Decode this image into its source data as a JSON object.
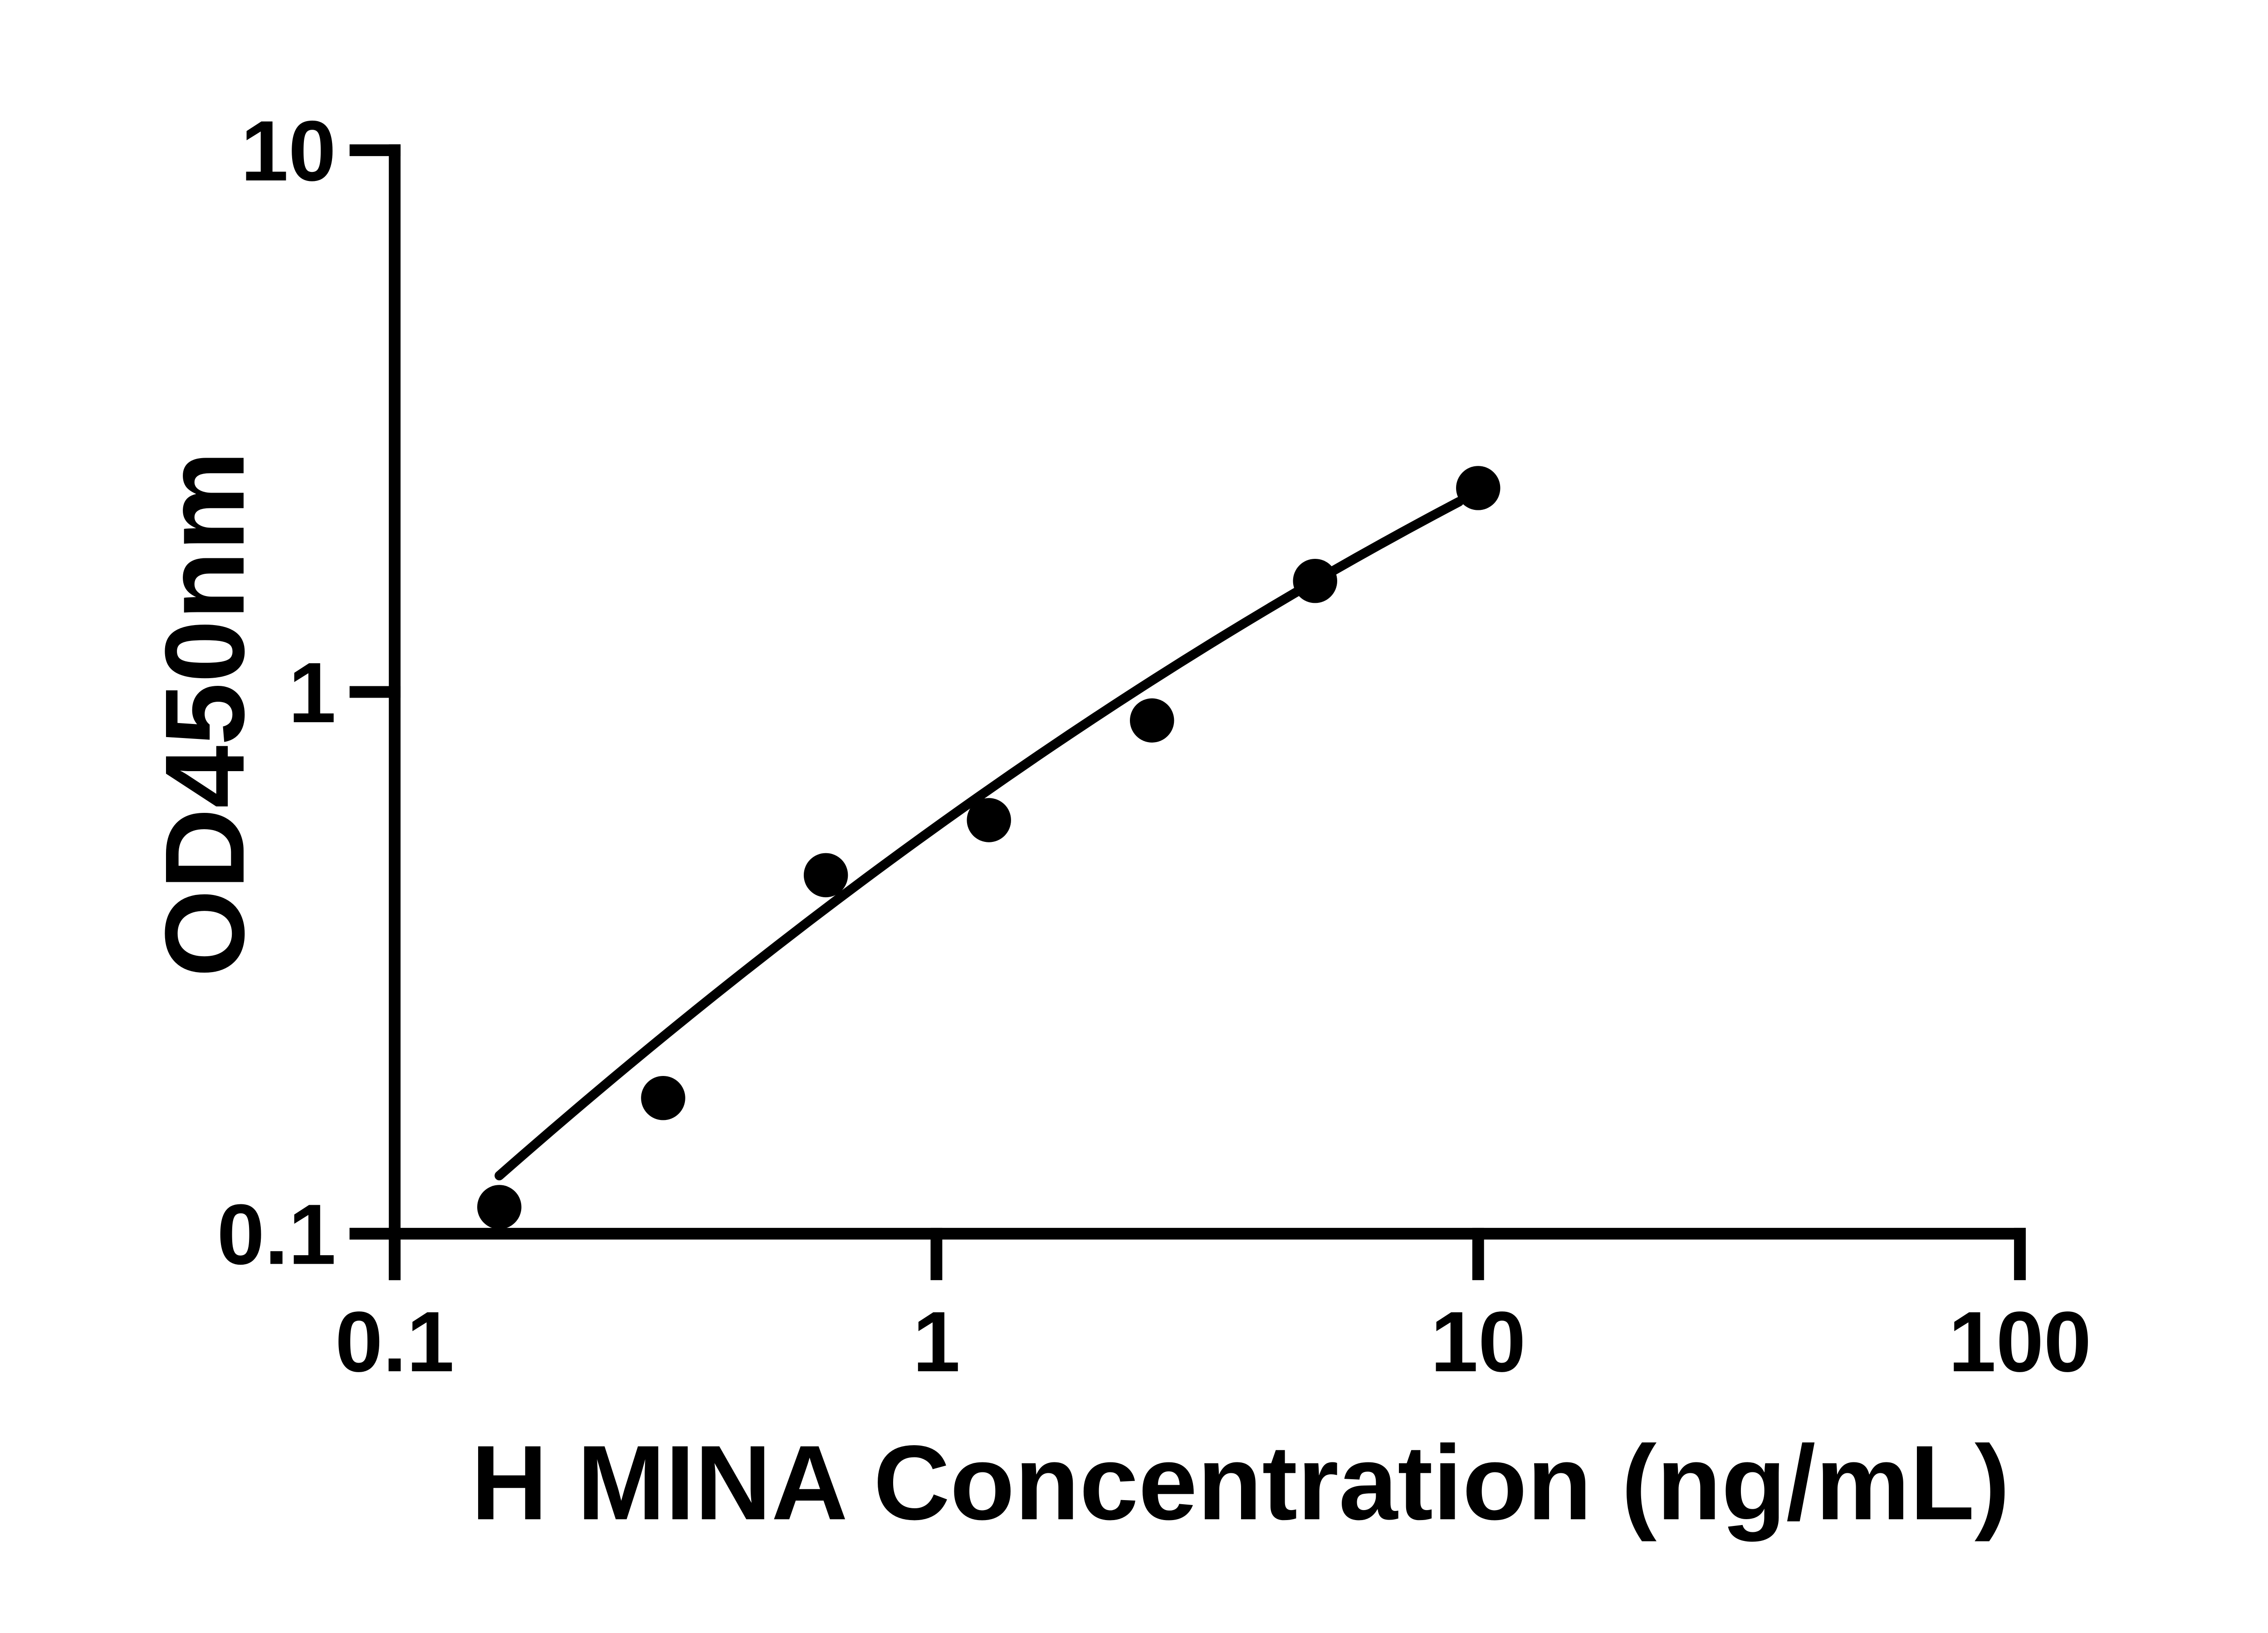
{
  "figure": {
    "background_color": "#ffffff",
    "ink_color": "#000000"
  },
  "chart_data": {
    "type": "scatter",
    "title": "",
    "xlabel": "H MINA Concentration (ng/mL)",
    "ylabel": "OD450nm",
    "x_scale": "log",
    "y_scale": "log",
    "xlim": [
      0.1,
      100
    ],
    "ylim": [
      0.1,
      10
    ],
    "x_ticks": [
      0.1,
      1,
      10,
      100
    ],
    "x_tick_labels": [
      "0.1",
      "1",
      "10",
      "100"
    ],
    "y_ticks": [
      0.1,
      1,
      10
    ],
    "y_tick_labels": [
      "0.1",
      "1",
      "10"
    ],
    "grid": false,
    "legend_position": "none",
    "series": [
      {
        "name": "standard-points",
        "type": "scatter",
        "marker": "filled-circle",
        "color": "#000000",
        "points": [
          {
            "x": 0.156,
            "y": 0.112
          },
          {
            "x": 0.313,
            "y": 0.178
          },
          {
            "x": 0.625,
            "y": 0.459
          },
          {
            "x": 1.25,
            "y": 0.58
          },
          {
            "x": 2.5,
            "y": 0.886
          },
          {
            "x": 5,
            "y": 1.603
          },
          {
            "x": 10,
            "y": 2.379
          }
        ]
      },
      {
        "name": "fit-line",
        "type": "line",
        "color": "#000000",
        "fit_anchors": {
          "start": {
            "x": 0.156,
            "y": 0.128
          },
          "mid": {
            "x": 1.2,
            "y": 0.642
          },
          "end": {
            "x": 9.22,
            "y": 2.245
          }
        }
      }
    ]
  }
}
